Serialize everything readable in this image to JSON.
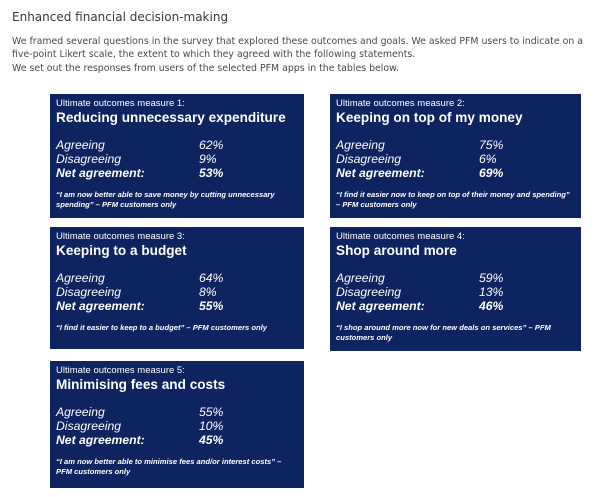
{
  "heading": "Enhanced financial decision-making",
  "intro": {
    "line1": "We framed several questions in the survey that explored these outcomes and goals. We asked PFM users to indicate on a five-point Likert scale, the extent to which they agreed with the following statements.",
    "line2": "We set out the responses from users of the selected PFM apps in the tables below."
  },
  "labels": {
    "agreeing": "Agreeing",
    "disagreeing": "Disagreeing",
    "net": "Net agreement:"
  },
  "cards": [
    {
      "measure": "Ultimate outcomes measure 1:",
      "title": "Reducing unnecessary expenditure",
      "agreeing": "62%",
      "disagreeing": "9%",
      "net": "53%",
      "quote": "“I am now better able to save money by cutting unnecessary spending” – PFM customers only"
    },
    {
      "measure": "Ultimate outcomes measure 2:",
      "title": "Keeping on top of my money",
      "agreeing": "75%",
      "disagreeing": "6%",
      "net": "69%",
      "quote": "“I find it easier now to keep on top of their money and spending” – PFM customers only"
    },
    {
      "measure": "Ultimate outcomes measure 3:",
      "title": "Keeping to a budget",
      "agreeing": "64%",
      "disagreeing": "8%",
      "net": "55%",
      "quote": "“I find it easier to keep to a budget” – PFM customers only"
    },
    {
      "measure": "Ultimate outcomes measure 4:",
      "title": "Shop around more",
      "agreeing": "59%",
      "disagreeing": "13%",
      "net": "46%",
      "quote": "“I shop around more now for new deals on services” – PFM customers only"
    },
    {
      "measure": "Ultimate outcomes measure 5:",
      "title": "Minimising fees and costs",
      "agreeing": "55%",
      "disagreeing": "10%",
      "net": "45%",
      "quote": "“I am now better able to minimise fees and/or interest costs” – PFM customers only"
    }
  ],
  "colors": {
    "card_background": "#0d2461",
    "text": "#ffffff"
  }
}
